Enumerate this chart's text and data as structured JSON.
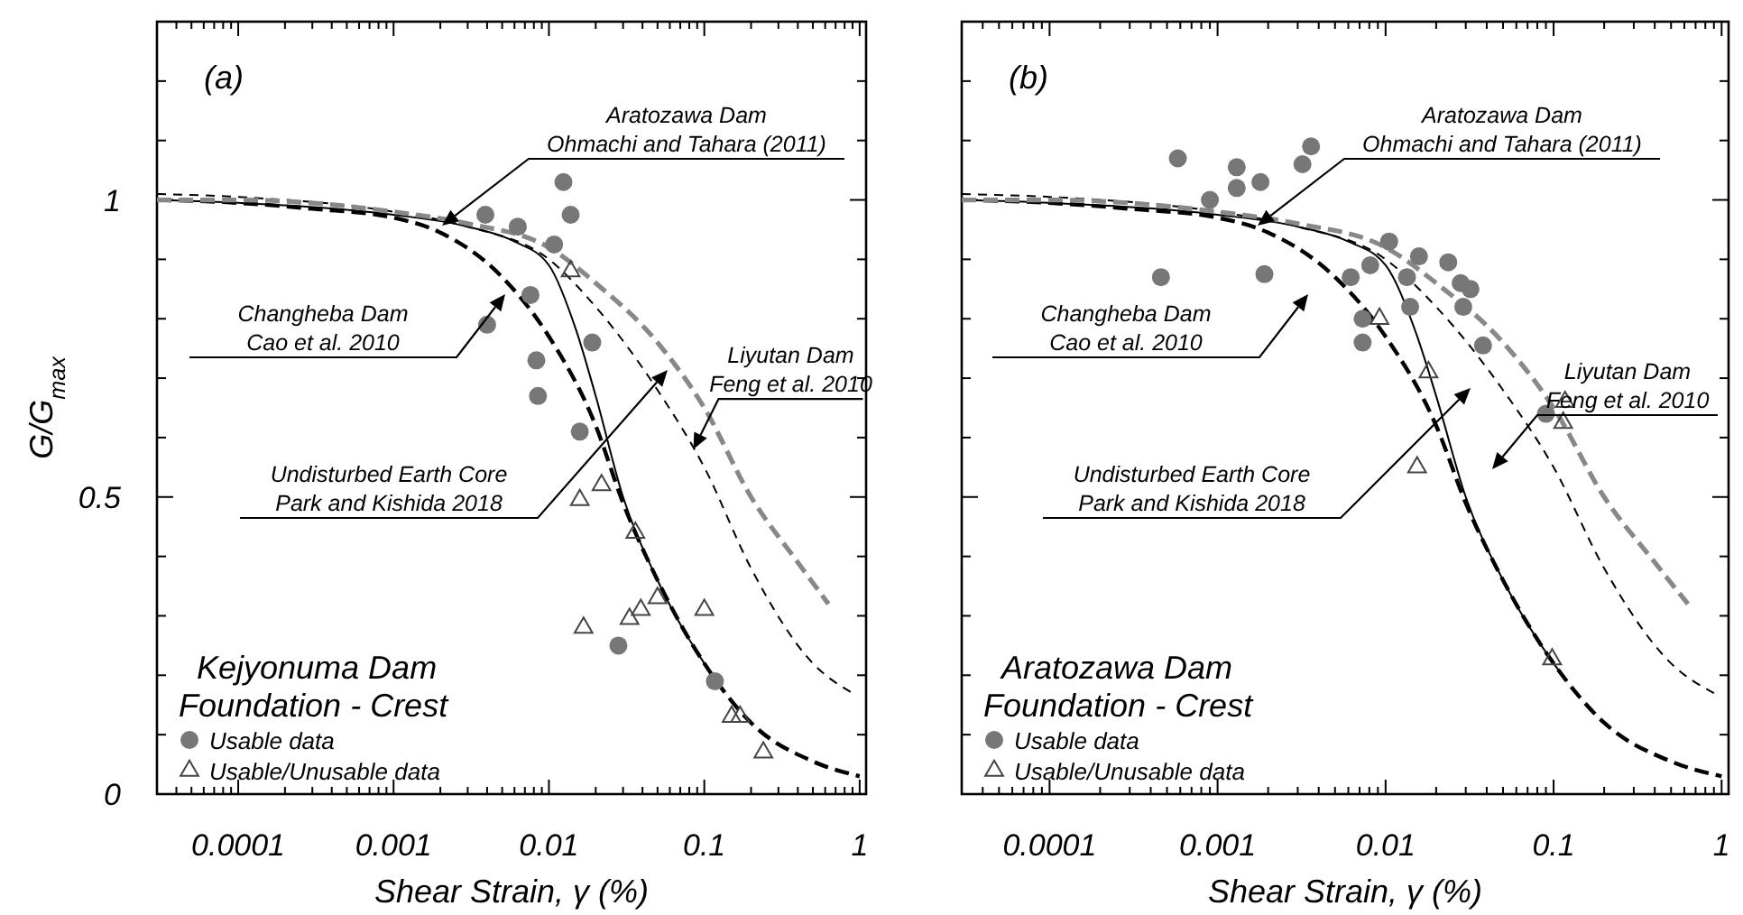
{
  "chart_data": [
    {
      "type": "line",
      "title": "(a)",
      "xlabel": "Shear Strain, γ (%)",
      "ylabel": "G/G$_{max}$",
      "legend_title": "Kejyonuma Dam\nFoundation - Crest",
      "legend": "bottom left",
      "log": "x",
      "xlim": [
        3e-05,
        1.1
      ],
      "xticks": [
        {
          "value": 3e-05,
          "label": null
        },
        {
          "value": 4e-05,
          "label": null
        },
        {
          "value": 5e-05,
          "label": null
        },
        {
          "value": 6e-05,
          "label": null
        },
        {
          "value": 7e-05,
          "label": null
        },
        {
          "value": 8e-05,
          "label": null
        },
        {
          "value": 9e-05,
          "label": null
        },
        0.0001,
        {
          "value": 0.0002,
          "label": null
        },
        {
          "value": 0.0003,
          "label": null
        },
        {
          "value": 0.0004,
          "label": null
        },
        {
          "value": 0.0005,
          "label": null
        },
        {
          "value": 0.0006,
          "label": null
        },
        {
          "value": 0.0007,
          "label": null
        },
        {
          "value": 0.0008,
          "label": null
        },
        {
          "value": 0.0009,
          "label": null
        },
        0.001,
        {
          "value": 0.002,
          "label": null
        },
        {
          "value": 0.003,
          "label": null
        },
        {
          "value": 0.004,
          "label": null
        },
        {
          "value": 0.005,
          "label": null
        },
        {
          "value": 0.006,
          "label": null
        },
        {
          "value": 0.007,
          "label": null
        },
        {
          "value": 0.008,
          "label": null
        },
        {
          "value": 0.009,
          "label": null
        },
        0.01,
        {
          "value": 0.02,
          "label": null
        },
        {
          "value": 0.03,
          "label": null
        },
        {
          "value": 0.04,
          "label": null
        },
        {
          "value": 0.05,
          "label": null
        },
        {
          "value": 0.06,
          "label": null
        },
        {
          "value": 0.07,
          "label": null
        },
        {
          "value": 0.08,
          "label": null
        },
        {
          "value": 0.09,
          "label": null
        },
        0.1,
        {
          "value": 0.2,
          "label": null
        },
        {
          "value": 0.3,
          "label": null
        },
        {
          "value": 0.4,
          "label": null
        },
        {
          "value": 0.5,
          "label": null
        },
        {
          "value": 0.6,
          "label": null
        },
        {
          "value": 0.7,
          "label": null
        },
        {
          "value": 0.8,
          "label": null
        },
        {
          "value": 0.9,
          "label": null
        },
        1
      ],
      "ylim": [
        0,
        1.3
      ],
      "yticks": [
        0,
        {
          "value": 0.1,
          "label": null
        },
        {
          "value": 0.2,
          "label": null
        },
        {
          "value": 0.3,
          "label": null
        },
        {
          "value": 0.4,
          "label": null
        },
        0.5,
        {
          "value": 0.6,
          "label": null
        },
        {
          "value": 0.7,
          "label": null
        },
        {
          "value": 0.8,
          "label": null
        },
        {
          "value": 0.9,
          "label": null
        },
        1,
        {
          "value": 1.1,
          "label": null
        },
        {
          "value": 1.2,
          "label": null
        }
      ],
      "annotations": [
        "Aratozawa Dam\nOhmachi and Tahara (2011)",
        "Changheba Dam\nCao et al. 2010",
        "Undisturbed Earth Core\nPark and Kishida 2018",
        {
          "text": "Liyutan Dam\nFeng et al. 2010",
          "x": 0.085,
          "y": 0.58
        }
      ],
      "series": [
        {
          "type": "line",
          "color": "#000000",
          "line_style": "dashed",
          "x": [
            3e-05,
            0.0001,
            0.0003,
            0.001,
            0.002,
            0.005,
            0.01,
            0.02,
            0.03,
            0.05,
            0.1,
            0.2,
            0.5,
            1
          ],
          "values": [
            1.0,
            0.995,
            0.985,
            0.97,
            0.945,
            0.87,
            0.77,
            0.62,
            0.49,
            0.36,
            0.22,
            0.12,
            0.055,
            0.03
          ]
        },
        {
          "type": "line",
          "color": "#000000",
          "line_style": "solid",
          "x": [
            3e-05,
            0.0001,
            0.001,
            0.003,
            0.006,
            0.01,
            0.015,
            0.02,
            0.03,
            0.05,
            0.1,
            0.12
          ],
          "values": [
            1.0,
            0.995,
            0.975,
            0.955,
            0.93,
            0.89,
            0.78,
            0.67,
            0.5,
            0.36,
            0.22,
            0.19
          ]
        },
        {
          "type": "line",
          "color": "#000000",
          "line_style": "dashed",
          "x": [
            3e-05,
            0.0001,
            0.001,
            0.003,
            0.01,
            0.02,
            0.05,
            0.1,
            0.2,
            0.5,
            0.9
          ],
          "values": [
            1.01,
            1.005,
            0.98,
            0.955,
            0.9,
            0.82,
            0.68,
            0.55,
            0.38,
            0.22,
            0.17
          ]
        },
        {
          "type": "line",
          "color": "#888888",
          "line_style": "dashed",
          "x": [
            3e-05,
            0.0001,
            0.001,
            0.003,
            0.01,
            0.02,
            0.05,
            0.1,
            0.2,
            0.4,
            0.63
          ],
          "values": [
            1.0,
            1.0,
            0.98,
            0.96,
            0.92,
            0.86,
            0.76,
            0.65,
            0.5,
            0.39,
            0.32
          ]
        },
        {
          "type": "scatter",
          "name": "Usable data",
          "color": "#777777",
          "marker": "circle",
          "x": [
            0.0039,
            0.0063,
            0.0124,
            0.0138,
            0.0108,
            0.0076,
            0.004,
            0.019,
            0.0083,
            0.0085,
            0.0158,
            0.028,
            0.117
          ],
          "values": [
            0.975,
            0.955,
            1.03,
            0.975,
            0.925,
            0.84,
            0.79,
            0.76,
            0.73,
            0.67,
            0.61,
            0.25,
            0.19
          ]
        },
        {
          "type": "scatter",
          "name": "Usable/Unusable data",
          "color": "#444444",
          "marker": "triangle",
          "x": [
            0.0138,
            0.0158,
            0.0218,
            0.036,
            0.0167,
            0.033,
            0.039,
            0.05,
            0.1,
            0.15,
            0.17,
            0.24
          ],
          "values": [
            0.88,
            0.495,
            0.52,
            0.44,
            0.28,
            0.295,
            0.31,
            0.33,
            0.31,
            0.13,
            0.13,
            0.07
          ]
        }
      ]
    },
    {
      "type": "line",
      "title": "(b)",
      "xlabel": "Shear Strain, γ (%)",
      "legend_title": "Aratozawa Dam\nFoundation - Crest",
      "legend": "bottom left",
      "log": "x",
      "tick_labels": "x",
      "xlim": [
        3e-05,
        1.1
      ],
      "xticks": [
        {
          "value": 3e-05,
          "label": null
        },
        {
          "value": 4e-05,
          "label": null
        },
        {
          "value": 5e-05,
          "label": null
        },
        {
          "value": 6e-05,
          "label": null
        },
        {
          "value": 7e-05,
          "label": null
        },
        {
          "value": 8e-05,
          "label": null
        },
        {
          "value": 9e-05,
          "label": null
        },
        0.0001,
        {
          "value": 0.0002,
          "label": null
        },
        {
          "value": 0.0003,
          "label": null
        },
        {
          "value": 0.0004,
          "label": null
        },
        {
          "value": 0.0005,
          "label": null
        },
        {
          "value": 0.0006,
          "label": null
        },
        {
          "value": 0.0007,
          "label": null
        },
        {
          "value": 0.0008,
          "label": null
        },
        {
          "value": 0.0009,
          "label": null
        },
        0.001,
        {
          "value": 0.002,
          "label": null
        },
        {
          "value": 0.003,
          "label": null
        },
        {
          "value": 0.004,
          "label": null
        },
        {
          "value": 0.005,
          "label": null
        },
        {
          "value": 0.006,
          "label": null
        },
        {
          "value": 0.007,
          "label": null
        },
        {
          "value": 0.008,
          "label": null
        },
        {
          "value": 0.009,
          "label": null
        },
        0.01,
        {
          "value": 0.02,
          "label": null
        },
        {
          "value": 0.03,
          "label": null
        },
        {
          "value": 0.04,
          "label": null
        },
        {
          "value": 0.05,
          "label": null
        },
        {
          "value": 0.06,
          "label": null
        },
        {
          "value": 0.07,
          "label": null
        },
        {
          "value": 0.08,
          "label": null
        },
        {
          "value": 0.09,
          "label": null
        },
        0.1,
        {
          "value": 0.2,
          "label": null
        },
        {
          "value": 0.3,
          "label": null
        },
        {
          "value": 0.4,
          "label": null
        },
        {
          "value": 0.5,
          "label": null
        },
        {
          "value": 0.6,
          "label": null
        },
        {
          "value": 0.7,
          "label": null
        },
        {
          "value": 0.8,
          "label": null
        },
        {
          "value": 0.9,
          "label": null
        },
        1
      ],
      "ylim": [
        0,
        1.3
      ],
      "yticks": [
        0,
        {
          "value": 0.1,
          "label": null
        },
        {
          "value": 0.2,
          "label": null
        },
        {
          "value": 0.3,
          "label": null
        },
        {
          "value": 0.4,
          "label": null
        },
        0.5,
        {
          "value": 0.6,
          "label": null
        },
        {
          "value": 0.7,
          "label": null
        },
        {
          "value": 0.8,
          "label": null
        },
        {
          "value": 0.9,
          "label": null
        },
        1,
        {
          "value": 1.1,
          "label": null
        },
        {
          "value": 1.2,
          "label": null
        }
      ],
      "annotations": [
        "Aratozawa Dam\nOhmachi and Tahara (2011)",
        "Changheba Dam\nCao et al. 2010",
        "Undisturbed Earth Core\nPark and Kishida 2018",
        "Liyutan Dam\nFeng et al. 2010"
      ],
      "series": [
        {
          "type": "line",
          "color": "#000000",
          "line_style": "dashed",
          "x": [
            3e-05,
            0.0001,
            0.0003,
            0.001,
            0.002,
            0.005,
            0.01,
            0.02,
            0.03,
            0.05,
            0.1,
            0.2,
            0.5,
            1
          ],
          "values": [
            1.0,
            0.995,
            0.985,
            0.97,
            0.945,
            0.87,
            0.77,
            0.62,
            0.49,
            0.36,
            0.22,
            0.12,
            0.055,
            0.03
          ]
        },
        {
          "type": "line",
          "color": "#000000",
          "line_style": "solid",
          "x": [
            3e-05,
            0.0001,
            0.001,
            0.003,
            0.006,
            0.01,
            0.015,
            0.02,
            0.03,
            0.05,
            0.1,
            0.12
          ],
          "values": [
            1.0,
            0.995,
            0.975,
            0.955,
            0.93,
            0.89,
            0.78,
            0.67,
            0.5,
            0.36,
            0.22,
            0.19
          ]
        },
        {
          "type": "line",
          "color": "#000000",
          "line_style": "dashed",
          "x": [
            3e-05,
            0.0001,
            0.001,
            0.003,
            0.01,
            0.02,
            0.05,
            0.1,
            0.2,
            0.5,
            0.9
          ],
          "values": [
            1.01,
            1.005,
            0.98,
            0.955,
            0.9,
            0.82,
            0.68,
            0.55,
            0.38,
            0.22,
            0.17
          ]
        },
        {
          "type": "line",
          "color": "#888888",
          "line_style": "dashed",
          "x": [
            3e-05,
            0.0001,
            0.001,
            0.003,
            0.01,
            0.02,
            0.05,
            0.1,
            0.2,
            0.4,
            0.63
          ],
          "values": [
            1.0,
            1.0,
            0.98,
            0.96,
            0.92,
            0.86,
            0.76,
            0.65,
            0.5,
            0.39,
            0.32
          ]
        },
        {
          "type": "scatter",
          "name": "Usable data",
          "color": "#777777",
          "marker": "circle",
          "x": [
            0.00058,
            0.0013,
            0.0013,
            0.0018,
            0.0032,
            0.0036,
            0.0009,
            0.00046,
            0.0019,
            0.0062,
            0.0081,
            0.0105,
            0.0158,
            0.0236,
            0.0134,
            0.028,
            0.032,
            0.029,
            0.014,
            0.0073,
            0.0073,
            0.038,
            0.09
          ],
          "values": [
            1.07,
            1.055,
            1.02,
            1.03,
            1.06,
            1.09,
            1.0,
            0.87,
            0.875,
            0.87,
            0.89,
            0.93,
            0.905,
            0.895,
            0.87,
            0.86,
            0.85,
            0.82,
            0.82,
            0.8,
            0.76,
            0.755,
            0.64
          ]
        },
        {
          "type": "scatter",
          "name": "Usable/Unusable data",
          "color": "#444444",
          "marker": "triangle",
          "x": [
            0.0092,
            0.018,
            0.117,
            0.114,
            0.0154,
            0.098
          ],
          "values": [
            0.8,
            0.71,
            0.66,
            0.625,
            0.55,
            0.227
          ]
        }
      ]
    }
  ]
}
